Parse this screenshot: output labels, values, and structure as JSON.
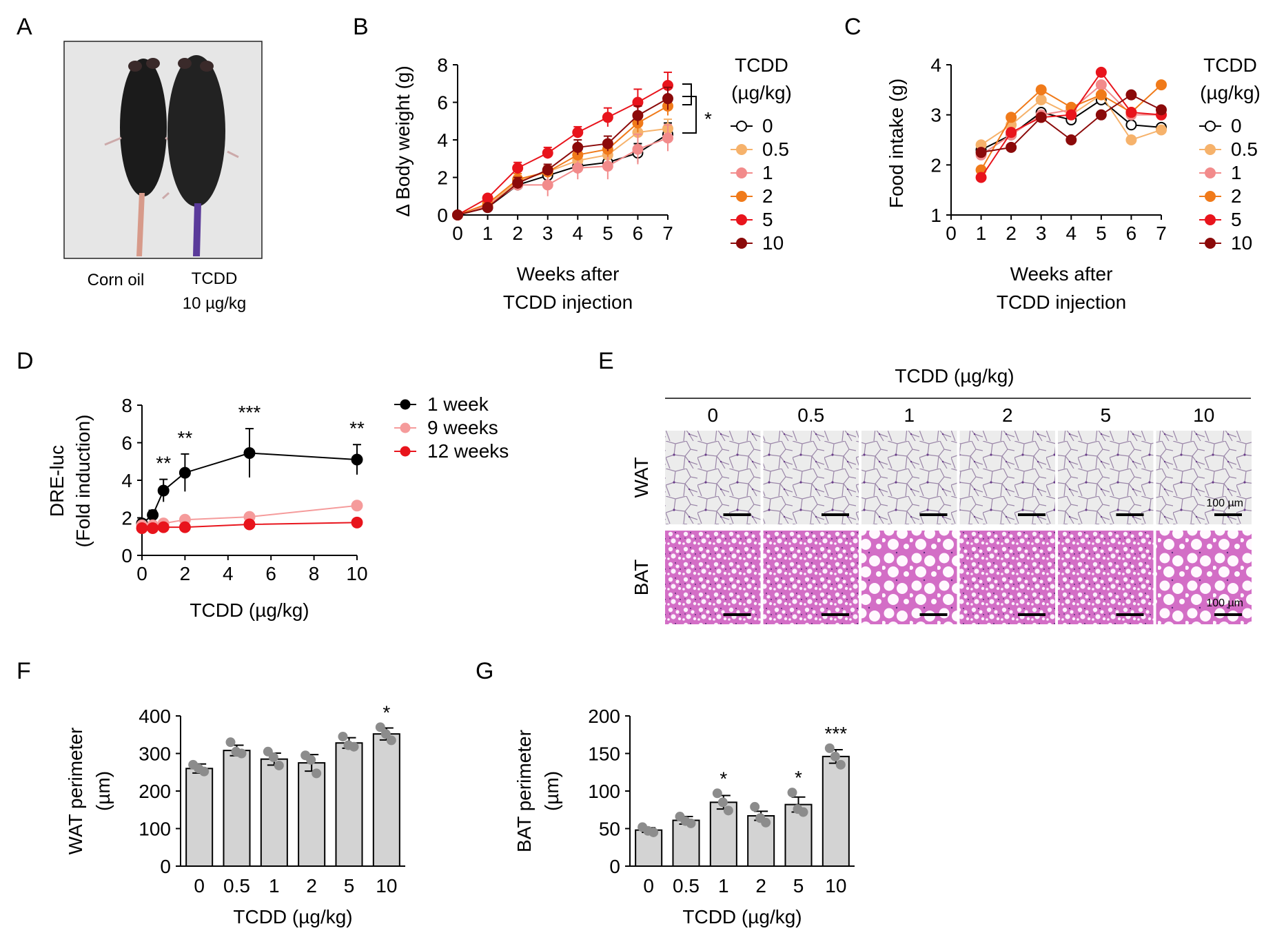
{
  "panel_labels": {
    "A": "A",
    "B": "B",
    "C": "C",
    "D": "D",
    "E": "E",
    "F": "F",
    "G": "G"
  },
  "panel_a": {
    "photo_alt": "Two black mice side by side",
    "label_left": "Corn oil",
    "label_right_line1": "TCDD",
    "label_right_line2": "10 µg/kg"
  },
  "dose_legend": {
    "title_line1": "TCDD",
    "title_line2": "(µg/kg)",
    "entries": [
      {
        "label": "0",
        "color": "#000000",
        "hollow": true
      },
      {
        "label": "0.5",
        "color": "#f6b26b",
        "hollow": false
      },
      {
        "label": "1",
        "color": "#f28b8b",
        "hollow": false
      },
      {
        "label": "2",
        "color": "#f07a1a",
        "hollow": false
      },
      {
        "label": "5",
        "color": "#e8141c",
        "hollow": false
      },
      {
        "label": "10",
        "color": "#8b0a0a",
        "hollow": false
      }
    ]
  },
  "chart_data": [
    {
      "id": "B",
      "type": "line",
      "xlabel_line1": "Weeks after",
      "xlabel_line2": "TCDD injection",
      "ylabel": "Δ Body weight (g)",
      "x": [
        0,
        1,
        2,
        3,
        4,
        5,
        6,
        7
      ],
      "xlim": [
        0,
        7
      ],
      "ylim": [
        0,
        8
      ],
      "xticks": [
        "0",
        "1",
        "2",
        "3",
        "4",
        "5",
        "6",
        "7"
      ],
      "yticks": [
        "0",
        "2",
        "4",
        "6",
        "8"
      ],
      "significance": "*",
      "series": [
        {
          "name": "0",
          "color": "#000000",
          "hollow": true,
          "values": [
            0,
            0.4,
            1.6,
            2.1,
            2.6,
            2.8,
            3.3,
            4.3
          ],
          "err": [
            0,
            0.1,
            0.3,
            0.3,
            0.4,
            0.4,
            0.5,
            0.6
          ]
        },
        {
          "name": "0.5",
          "color": "#f6b26b",
          "hollow": false,
          "values": [
            0,
            0.5,
            1.8,
            2.3,
            2.9,
            3.2,
            4.4,
            4.6
          ],
          "err": [
            0,
            0.1,
            0.3,
            0.3,
            0.4,
            0.5,
            0.5,
            0.5
          ]
        },
        {
          "name": "1",
          "color": "#f28b8b",
          "hollow": false,
          "values": [
            0,
            0.5,
            1.6,
            1.6,
            2.5,
            2.6,
            3.5,
            4.1
          ],
          "err": [
            0,
            0.1,
            0.3,
            0.6,
            0.6,
            0.7,
            0.8,
            0.7
          ]
        },
        {
          "name": "2",
          "color": "#f07a1a",
          "hollow": false,
          "values": [
            0,
            0.6,
            1.9,
            2.3,
            3.2,
            3.5,
            4.9,
            5.8
          ],
          "err": [
            0,
            0.1,
            0.3,
            0.3,
            0.3,
            0.4,
            0.5,
            0.5
          ]
        },
        {
          "name": "5",
          "color": "#e8141c",
          "hollow": false,
          "values": [
            0,
            0.9,
            2.5,
            3.3,
            4.4,
            5.2,
            6.0,
            6.9
          ],
          "err": [
            0,
            0.1,
            0.3,
            0.3,
            0.3,
            0.5,
            0.7,
            0.7
          ]
        },
        {
          "name": "10",
          "color": "#8b0a0a",
          "hollow": false,
          "values": [
            0,
            0.4,
            1.7,
            2.4,
            3.6,
            3.8,
            5.3,
            6.2
          ],
          "err": [
            0,
            0.1,
            0.3,
            0.3,
            0.4,
            0.4,
            0.5,
            0.6
          ]
        }
      ]
    },
    {
      "id": "C",
      "type": "line",
      "xlabel_line1": "Weeks after",
      "xlabel_line2": "TCDD injection",
      "ylabel": "Food intake (g)",
      "x": [
        1,
        2,
        3,
        4,
        5,
        6,
        7
      ],
      "xlim": [
        0,
        7
      ],
      "ylim": [
        1,
        4
      ],
      "xticks": [
        "0",
        "1",
        "2",
        "3",
        "4",
        "5",
        "6",
        "7"
      ],
      "yticks": [
        "1",
        "2",
        "3",
        "4"
      ],
      "series": [
        {
          "name": "0",
          "color": "#000000",
          "hollow": true,
          "values": [
            2.3,
            2.6,
            3.05,
            2.9,
            3.3,
            2.8,
            2.75
          ]
        },
        {
          "name": "0.5",
          "color": "#f6b26b",
          "hollow": false,
          "values": [
            2.4,
            2.8,
            3.3,
            3.0,
            3.4,
            2.5,
            2.7
          ]
        },
        {
          "name": "1",
          "color": "#f28b8b",
          "hollow": false,
          "values": [
            2.2,
            2.6,
            3.0,
            3.1,
            3.6,
            3.0,
            3.0
          ]
        },
        {
          "name": "2",
          "color": "#f07a1a",
          "hollow": false,
          "values": [
            1.9,
            2.95,
            3.5,
            3.15,
            3.4,
            3.05,
            3.6
          ]
        },
        {
          "name": "5",
          "color": "#e8141c",
          "hollow": false,
          "values": [
            1.75,
            2.65,
            2.95,
            3.0,
            3.85,
            3.05,
            3.0
          ]
        },
        {
          "name": "10",
          "color": "#8b0a0a",
          "hollow": false,
          "values": [
            2.25,
            2.35,
            2.95,
            2.5,
            3.0,
            3.4,
            3.1
          ]
        }
      ]
    },
    {
      "id": "D",
      "type": "line",
      "xlabel": "TCDD (µg/kg)",
      "ylabel_line1": "DRE-luc",
      "ylabel_line2": "(Fold induction)",
      "x": [
        0,
        0.5,
        1,
        2,
        5,
        10
      ],
      "xlim": [
        0,
        10
      ],
      "ylim": [
        0,
        8
      ],
      "xticks": [
        "0",
        "2",
        "4",
        "6",
        "8",
        "10"
      ],
      "yticks": [
        "0",
        "2",
        "4",
        "6",
        "8"
      ],
      "series": [
        {
          "name": "1 week",
          "color": "#000000",
          "values": [
            1.7,
            2.15,
            3.45,
            4.4,
            5.45,
            5.1
          ],
          "err": [
            0.2,
            0.25,
            0.6,
            1.0,
            1.3,
            0.8
          ],
          "sig": [
            "",
            "",
            "**",
            "**",
            "***",
            "**"
          ]
        },
        {
          "name": "9 weeks",
          "color": "#f59b9b",
          "values": [
            1.6,
            1.6,
            1.7,
            1.9,
            2.05,
            2.65
          ],
          "err": [
            0,
            0,
            0,
            0,
            0,
            0
          ],
          "sig": [
            "",
            "",
            "",
            "",
            "",
            ""
          ]
        },
        {
          "name": "12 weeks",
          "color": "#e8141c",
          "values": [
            1.45,
            1.45,
            1.5,
            1.5,
            1.65,
            1.75
          ],
          "err": [
            0,
            0,
            0,
            0,
            0,
            0
          ],
          "sig": [
            "",
            "",
            "",
            "",
            "",
            ""
          ]
        }
      ]
    },
    {
      "id": "F",
      "type": "bar",
      "xlabel": "TCDD (µg/kg)",
      "ylabel_line1": "WAT perimeter",
      "ylabel_line2": "(µm)",
      "categories": [
        "0",
        "0.5",
        "1",
        "2",
        "5",
        "10"
      ],
      "values": [
        260,
        308,
        285,
        275,
        328,
        352
      ],
      "err": [
        12,
        14,
        16,
        22,
        14,
        16
      ],
      "points": [
        [
          270,
          252,
          260
        ],
        [
          330,
          300,
          305
        ],
        [
          305,
          268,
          290
        ],
        [
          295,
          247,
          283
        ],
        [
          345,
          318,
          322
        ],
        [
          370,
          335,
          352
        ]
      ],
      "sig": [
        "",
        "",
        "",
        "",
        "",
        "*"
      ],
      "ylim": [
        0,
        400
      ],
      "yticks": [
        "0",
        "100",
        "200",
        "300",
        "400"
      ]
    },
    {
      "id": "G",
      "type": "bar",
      "xlabel": "TCDD (µg/kg)",
      "ylabel_line1": "BAT perimeter",
      "ylabel_line2": "(µm)",
      "categories": [
        "0",
        "0.5",
        "1",
        "2",
        "5",
        "10"
      ],
      "values": [
        48,
        61,
        85,
        67,
        82,
        146
      ],
      "err": [
        3,
        5,
        9,
        6,
        10,
        9
      ],
      "points": [
        [
          52,
          45,
          47
        ],
        [
          66,
          57,
          60
        ],
        [
          97,
          74,
          85
        ],
        [
          79,
          58,
          64
        ],
        [
          98,
          72,
          76
        ],
        [
          157,
          135,
          146
        ]
      ],
      "sig": [
        "",
        "",
        "*",
        "",
        "*",
        "***"
      ],
      "ylim": [
        0,
        200
      ],
      "yticks": [
        "0",
        "50",
        "100",
        "150",
        "200"
      ]
    }
  ],
  "panel_e": {
    "title": "TCDD (µg/kg)",
    "columns": [
      "0",
      "0.5",
      "1",
      "2",
      "5",
      "10"
    ],
    "rows": [
      "WAT",
      "BAT"
    ],
    "scale_label": "100 µm"
  }
}
